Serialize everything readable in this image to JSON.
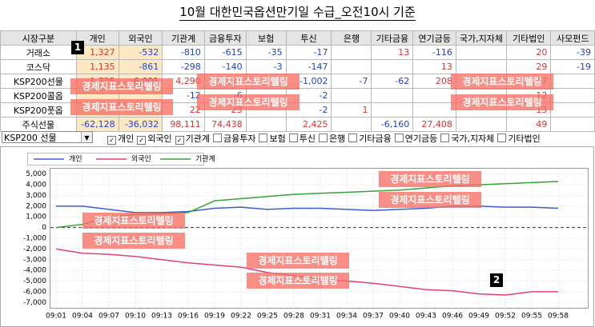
{
  "title": "10월 대한민국옵션만기일 수급_오전10시 기준",
  "table": {
    "header": [
      "시장구분",
      "개인",
      "외국인",
      "기관계",
      "금융투자",
      "보험",
      "투신",
      "은행",
      "기타금융",
      "연기금등",
      "국가,지자체",
      "기타법인",
      "사모펀드"
    ],
    "rows": [
      [
        "거래소",
        "1,327",
        "-532",
        "-810",
        "-615",
        "-35",
        "-17",
        null,
        "13",
        "-116",
        null,
        "20",
        "-39"
      ],
      [
        "코스닥",
        "1,135",
        "-861",
        "-298",
        "-140",
        "-3",
        "-147",
        null,
        null,
        "13",
        null,
        "29",
        "-19"
      ],
      [
        "KSP200선물",
        "1,725",
        "-6,001",
        "4,290",
        "5,155",
        null,
        "-1,002",
        "-7",
        "-62",
        "208",
        null,
        "67",
        null
      ],
      [
        "KSP200콜옵",
        null,
        null,
        "-12",
        "-6",
        null,
        "-2",
        null,
        null,
        null,
        null,
        "12",
        null
      ],
      [
        "KSP200풋옵",
        null,
        null,
        "22",
        "23",
        null,
        "-2",
        "1",
        null,
        null,
        null,
        "13",
        null
      ],
      [
        "주식선물",
        "-62,128",
        "-36,032",
        "98,111",
        "74,438",
        null,
        "2,425",
        null,
        "-6,160",
        "27,408",
        null,
        "49",
        null
      ]
    ]
  },
  "controls": {
    "dropdown": "KSP200 선물",
    "checkboxes": [
      {
        "label": "개인",
        "checked": true
      },
      {
        "label": "외국인",
        "checked": true
      },
      {
        "label": "기관계",
        "checked": true
      },
      {
        "label": "금융투자",
        "checked": false
      },
      {
        "label": "보험",
        "checked": false
      },
      {
        "label": "투신",
        "checked": false
      },
      {
        "label": "은행",
        "checked": false
      },
      {
        "label": "기타금융",
        "checked": false
      },
      {
        "label": "연기금등",
        "checked": false
      },
      {
        "label": "국가,지자체",
        "checked": false
      },
      {
        "label": "기타법인",
        "checked": false
      }
    ]
  },
  "badges": [
    "1",
    "2"
  ],
  "watermarks": [
    "경제지표스토리텔링",
    "경제지표스토리텔링",
    "경제지표스토리텔링",
    "경제지표스토리텔링",
    "경제지표스토리텔링",
    "경제지표스토리텔링",
    "경제지표스토리텔링",
    "경제지표스토리텔링",
    "경제지표스토리텔링",
    "경제지표스토리텔링",
    "경제지표스토리텔링",
    "경제지표스토리텔링"
  ],
  "chart_data": {
    "type": "line",
    "categories": [
      "09:01",
      "09:04",
      "09:07",
      "09:10",
      "09:13",
      "09:16",
      "09:19",
      "09:22",
      "09:25",
      "09:28",
      "09:31",
      "09:34",
      "09:37",
      "09:40",
      "09:43",
      "09:46",
      "09:49",
      "09:52",
      "09:55",
      "09:58"
    ],
    "series": [
      {
        "name": "개인",
        "color": "#3a5fcd",
        "values": [
          2000,
          2000,
          1700,
          1400,
          1400,
          1500,
          1800,
          1900,
          1700,
          1800,
          1800,
          1700,
          1600,
          1700,
          1800,
          2000,
          2000,
          1900,
          1900,
          1800
        ]
      },
      {
        "name": "외국인",
        "color": "#e0407a",
        "values": [
          -2000,
          -2400,
          -2500,
          -2700,
          -3000,
          -3300,
          -3500,
          -3700,
          -4200,
          -4500,
          -4800,
          -5000,
          -5200,
          -5500,
          -5800,
          -5900,
          -6200,
          -6300,
          -6000,
          -6000
        ]
      },
      {
        "name": "기관계",
        "color": "#3aa03a",
        "values": [
          0,
          300,
          1000,
          1200,
          1300,
          1400,
          2500,
          2700,
          2900,
          3100,
          3200,
          3300,
          3400,
          3500,
          3700,
          3900,
          4000,
          4100,
          4200,
          4300
        ]
      }
    ],
    "ylim": [
      -7500,
      5500
    ],
    "yticks": [
      {
        "value": 5000,
        "label": "5,000"
      },
      {
        "value": 4000,
        "label": "4,000"
      },
      {
        "value": 3000,
        "label": "3,000"
      },
      {
        "value": 2000,
        "label": "2,000"
      },
      {
        "value": 1000,
        "label": "1,000"
      },
      0,
      {
        "value": -1000,
        "label": "-1,000"
      },
      {
        "value": -2000,
        "label": "-2,000"
      },
      {
        "value": -3000,
        "label": "-3,000"
      },
      {
        "value": -4000,
        "label": "-4,000"
      },
      {
        "value": -5000,
        "label": "-5,000"
      },
      {
        "value": -6000,
        "label": "-6,000"
      },
      {
        "value": -7000,
        "label": "-7,000"
      }
    ],
    "grid": true
  }
}
